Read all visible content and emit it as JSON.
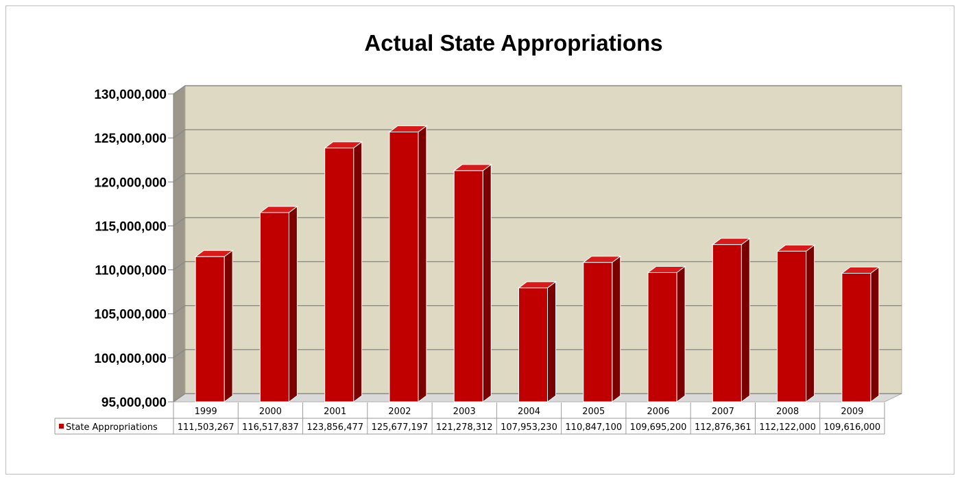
{
  "chart_data": {
    "type": "bar",
    "title": "Actual State Appropriations",
    "xlabel": "",
    "ylabel": "",
    "categories": [
      "1999",
      "2000",
      "2001",
      "2002",
      "2003",
      "2004",
      "2005",
      "2006",
      "2007",
      "2008",
      "2009"
    ],
    "series": [
      {
        "name": "State Appropriations",
        "values": [
          111503267,
          116517837,
          123856477,
          125677197,
          121278312,
          107953230,
          110847100,
          109695200,
          112876361,
          112122000,
          109616000
        ],
        "value_labels": [
          "111,503,267",
          "116,517,837",
          "123,856,477",
          "125,677,197",
          "121,278,312",
          "107,953,230",
          "110,847,100",
          "109,695,200",
          "112,876,361",
          "112,122,000",
          "109,616,000"
        ],
        "color": "#c00000"
      }
    ],
    "ylim": [
      95000000,
      130000000
    ],
    "yticks": [
      "95,000,000",
      "100,000,000",
      "105,000,000",
      "110,000,000",
      "115,000,000",
      "120,000,000",
      "125,000,000",
      "130,000,000"
    ],
    "grid": true,
    "style": "3d-column",
    "data_table": true,
    "colors": {
      "bar_front": "#c00000",
      "bar_side": "#7a0000",
      "bar_top": "#d91a1a",
      "back_wall": "#ddd9c3",
      "side_wall": "#9c978a",
      "floor": "#d9d9d9",
      "gridline": "#8a8a8a"
    }
  }
}
